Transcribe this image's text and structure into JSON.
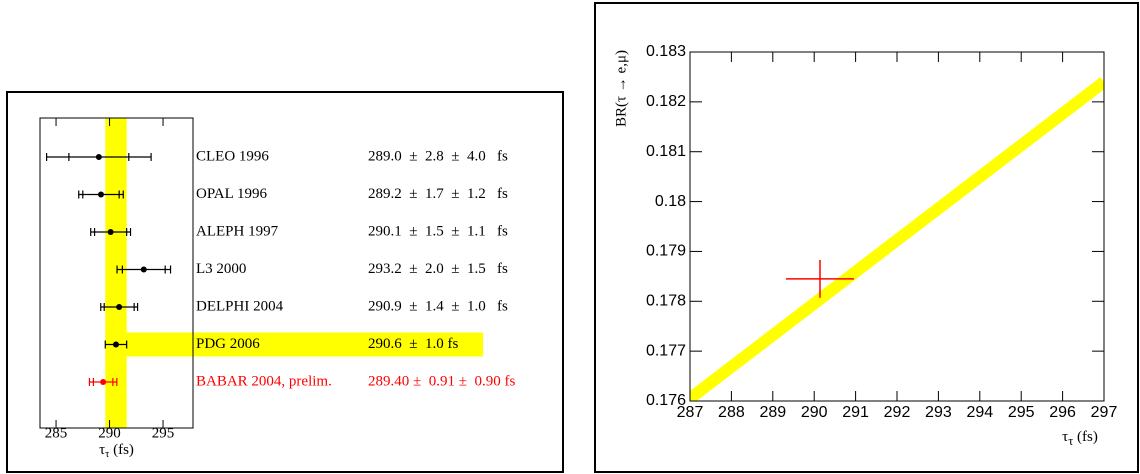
{
  "chart_data": [
    {
      "type": "forest",
      "categories": [
        "CLEO 1996",
        "OPAL 1996",
        "ALEPH 1997",
        "L3 2000",
        "DELPHI 2004",
        "PDG 2006",
        "BABAR 2004, prelim."
      ],
      "values": [
        289.0,
        289.2,
        290.1,
        293.2,
        290.9,
        290.6,
        289.4
      ],
      "errors_stat": [
        2.8,
        1.7,
        1.5,
        2.0,
        1.4,
        1.0,
        0.91
      ],
      "errors_syst": [
        4.0,
        1.2,
        1.1,
        1.5,
        1.0,
        null,
        0.9
      ],
      "result_labels": [
        "289.0  ±  2.8  ±  4.0   fs",
        "289.2  ±  1.7  ±  1.2   fs",
        "290.1  ±  1.5  ±  1.1   fs",
        "293.2  ±  2.0  ±  1.5   fs",
        "290.9  ±  1.4  ±  1.0   fs",
        "290.6  ±  1.0 fs",
        "289.40 ±  0.91 ±  0.90 fs"
      ],
      "colors": [
        "#000000",
        "#000000",
        "#000000",
        "#000000",
        "#000000",
        "#000000",
        "#ff0000"
      ],
      "band_category": "PDG 2006",
      "band_color": "#ffff00",
      "xlabel": {
        "symbol": "τ",
        "subscript": "τ",
        "unit": " (fs)"
      },
      "xlim": [
        283.5,
        297.8
      ],
      "xticks": [
        285,
        290,
        295
      ]
    },
    {
      "type": "line",
      "ylabel": "BR(τ → e,μ)",
      "xlabel": {
        "symbol": "τ",
        "subscript": "τ",
        "unit": " (fs)"
      },
      "band": {
        "x": [
          287,
          297
        ],
        "values": [
          0.17605,
          0.1824
        ],
        "color": "#ffff00"
      },
      "points": {
        "x": [
          290.14
        ],
        "values": [
          0.17845
        ],
        "xerr": [
          0.82
        ],
        "yerr": [
          0.00038
        ],
        "color": "#ff0000"
      },
      "xlim": [
        287,
        297
      ],
      "xticks": [
        287,
        288,
        289,
        290,
        291,
        292,
        293,
        294,
        295,
        296,
        297
      ],
      "ylim": [
        0.176,
        0.183
      ],
      "yticks": [
        0.176,
        0.177,
        0.178,
        0.179,
        0.18,
        0.181,
        0.182,
        0.183
      ]
    }
  ]
}
